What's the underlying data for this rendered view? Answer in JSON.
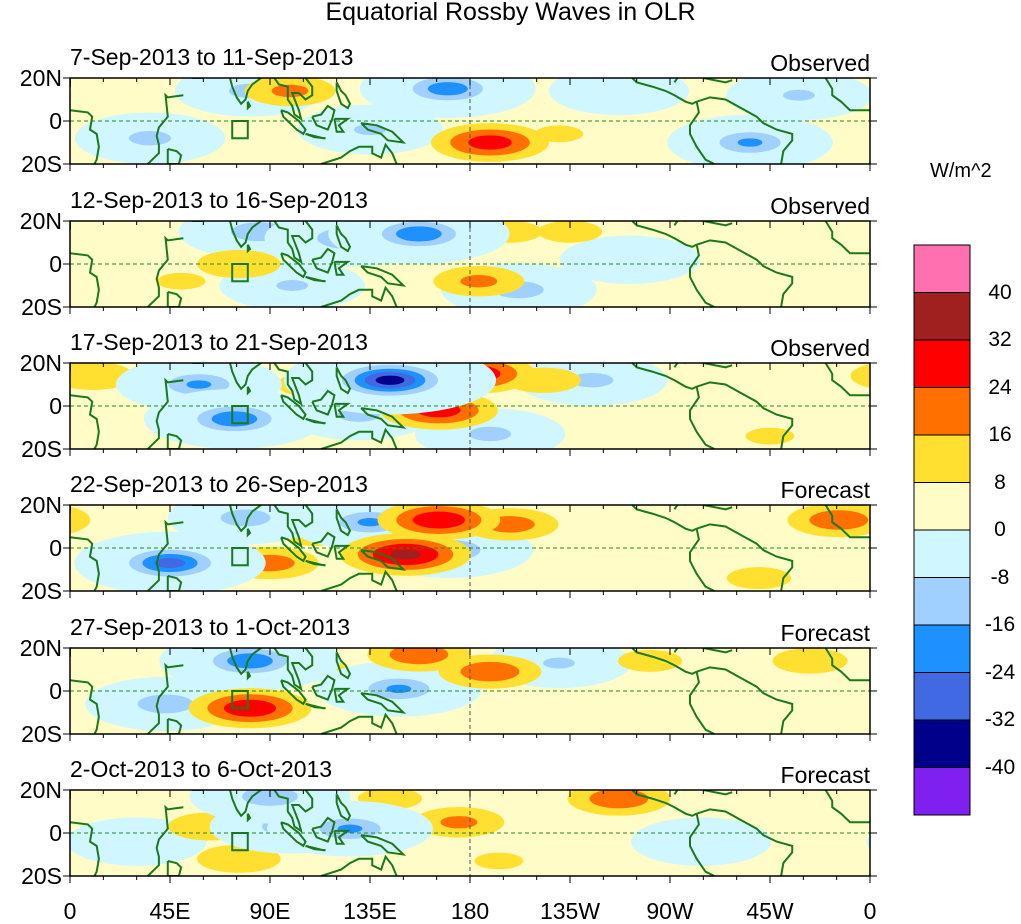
{
  "chart_data": {
    "type": "heatmap",
    "title": "Equatorial Rossby Waves in OLR",
    "colorbar": {
      "unit": "W/m^2",
      "levels": [
        -40,
        -32,
        -24,
        -16,
        -8,
        0,
        8,
        16,
        24,
        32,
        40
      ],
      "colors": [
        "#8020f0",
        "#00008b",
        "#4169e1",
        "#1e90ff",
        "#a0d0ff",
        "#d0f6ff",
        "#fffcc8",
        "#ffe030",
        "#ff7000",
        "#ff0000",
        "#a02020",
        "#ff70b0"
      ]
    },
    "lat_range": [
      -20,
      20
    ],
    "lon_range": [
      0,
      360
    ],
    "ytick_labels": [
      "20N",
      "0",
      "20S"
    ],
    "xtick_labels": [
      "0",
      "45E",
      "90E",
      "135E",
      "180",
      "135W",
      "90W",
      "45W",
      "0"
    ],
    "panels": [
      {
        "title": "7-Sep-2013 to 11-Sep-2013",
        "kind": "Observed",
        "anomaly_centers": [
          [
            170,
            15,
            -22
          ],
          [
            189,
            -10,
            28
          ],
          [
            99,
            14,
            18
          ],
          [
            36,
            -8,
            -12
          ],
          [
            306,
            -10,
            -18
          ],
          [
            58,
            -6,
            10
          ],
          [
            81,
            14,
            -12
          ],
          [
            220,
            -6,
            10
          ],
          [
            328,
            12,
            -10
          ],
          [
            247,
            14,
            -8
          ],
          [
            135,
            -4,
            -10
          ]
        ]
      },
      {
        "title": "12-Sep-2013 to 16-Sep-2013",
        "kind": "Observed",
        "anomaly_centers": [
          [
            157,
            14,
            -24
          ],
          [
            126,
            12,
            -20
          ],
          [
            184,
            -8,
            18
          ],
          [
            198,
            15,
            12
          ],
          [
            225,
            15,
            12
          ],
          [
            202,
            -12,
            -14
          ],
          [
            85,
            15,
            -16
          ],
          [
            76,
            0,
            16
          ],
          [
            50,
            -8,
            10
          ],
          [
            252,
            2,
            -8
          ],
          [
            100,
            -10,
            -10
          ]
        ]
      },
      {
        "title": "17-Sep-2013 to 21-Sep-2013",
        "kind": "Observed",
        "anomaly_centers": [
          [
            144,
            12,
            -36
          ],
          [
            182,
            15,
            30
          ],
          [
            166,
            -2,
            28
          ],
          [
            74,
            -6,
            -24
          ],
          [
            58,
            10,
            -18
          ],
          [
            110,
            10,
            14
          ],
          [
            189,
            -13,
            -12
          ],
          [
            213,
            12,
            14
          ],
          [
            235,
            12,
            -12
          ],
          [
            315,
            -14,
            10
          ],
          [
            130,
            -4,
            -12
          ],
          [
            10,
            14,
            16
          ]
        ]
      },
      {
        "title": "22-Sep-2013 to 26-Sep-2013",
        "kind": "Forecast",
        "anomaly_centers": [
          [
            166,
            13,
            30
          ],
          [
            151,
            -3,
            34
          ],
          [
            171,
            -1,
            -18
          ],
          [
            135,
            12,
            -18
          ],
          [
            45,
            -7,
            -28
          ],
          [
            90,
            -7,
            20
          ],
          [
            198,
            11,
            20
          ],
          [
            346,
            13,
            22
          ],
          [
            310,
            -14,
            12
          ],
          [
            79,
            14,
            -14
          ],
          [
            110,
            6,
            12
          ]
        ]
      },
      {
        "title": "27-Sep-2013 to 1-Oct-2013",
        "kind": "Forecast",
        "anomaly_centers": [
          [
            81,
            -8,
            30
          ],
          [
            189,
            9,
            22
          ],
          [
            157,
            17,
            22
          ],
          [
            148,
            1,
            -18
          ],
          [
            81,
            14,
            -24
          ],
          [
            43,
            -6,
            -16
          ],
          [
            140,
            -2,
            16
          ],
          [
            220,
            13,
            -10
          ],
          [
            261,
            14,
            12
          ],
          [
            333,
            14,
            14
          ],
          [
            110,
            10,
            12
          ]
        ]
      },
      {
        "title": "2-Oct-2013 to 6-Oct-2013",
        "kind": "Forecast",
        "anomaly_centers": [
          [
            247,
            16,
            22
          ],
          [
            175,
            5,
            18
          ],
          [
            76,
            -12,
            16
          ],
          [
            63,
            3,
            16
          ],
          [
            99,
            3,
            -16
          ],
          [
            126,
            2,
            -18
          ],
          [
            90,
            17,
            -16
          ],
          [
            144,
            16,
            12
          ],
          [
            193,
            -13,
            10
          ],
          [
            284,
            -4,
            -8
          ],
          [
            30,
            -4,
            -8
          ]
        ]
      }
    ]
  }
}
